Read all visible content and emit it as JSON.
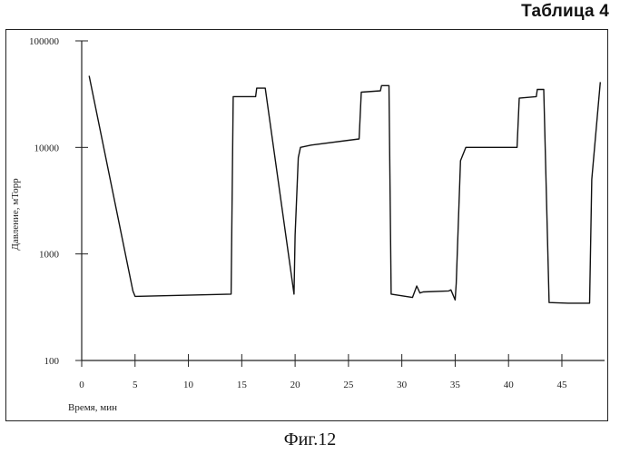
{
  "header": {
    "table_label": "Таблица 4"
  },
  "caption": "Фиг.12",
  "chart_data": {
    "type": "line",
    "title": "",
    "xlabel": "Время, мин",
    "ylabel": "Давление, мТорр",
    "xlim": [
      0,
      49
    ],
    "ylim": [
      100,
      100000
    ],
    "yscale": "log",
    "grid": false,
    "x_ticks": [
      0,
      5,
      10,
      15,
      20,
      25,
      30,
      35,
      40,
      45
    ],
    "y_ticks": [
      100,
      1000,
      10000,
      100000
    ],
    "y_tick_labels": [
      "100",
      "1000",
      "10000",
      "100000"
    ],
    "series": [
      {
        "values_x": [
          0.7,
          4.8,
          5.0,
          14.0,
          14.2,
          16.3,
          16.4,
          17.2,
          19.9,
          20.0,
          20.3,
          20.5,
          21.5,
          26.0,
          26.2,
          28.0,
          28.1,
          28.8,
          29.0,
          31.0,
          31.4,
          31.7,
          32.0,
          34.4,
          34.6,
          35.0,
          35.1,
          35.5,
          36.0,
          40.8,
          41.0,
          42.6,
          42.7,
          43.3,
          43.8,
          45.6,
          45.8,
          47.6,
          47.8,
          48.6
        ],
        "values_y": [
          47000,
          450,
          400,
          420,
          30000,
          30000,
          36000,
          36000,
          420,
          1500,
          8000,
          10000,
          10500,
          12000,
          33000,
          34000,
          38000,
          38000,
          420,
          390,
          500,
          430,
          440,
          450,
          460,
          370,
          530,
          7500,
          10000,
          10000,
          29000,
          30000,
          35000,
          35000,
          350,
          345,
          345,
          345,
          5000,
          41000
        ]
      }
    ]
  }
}
